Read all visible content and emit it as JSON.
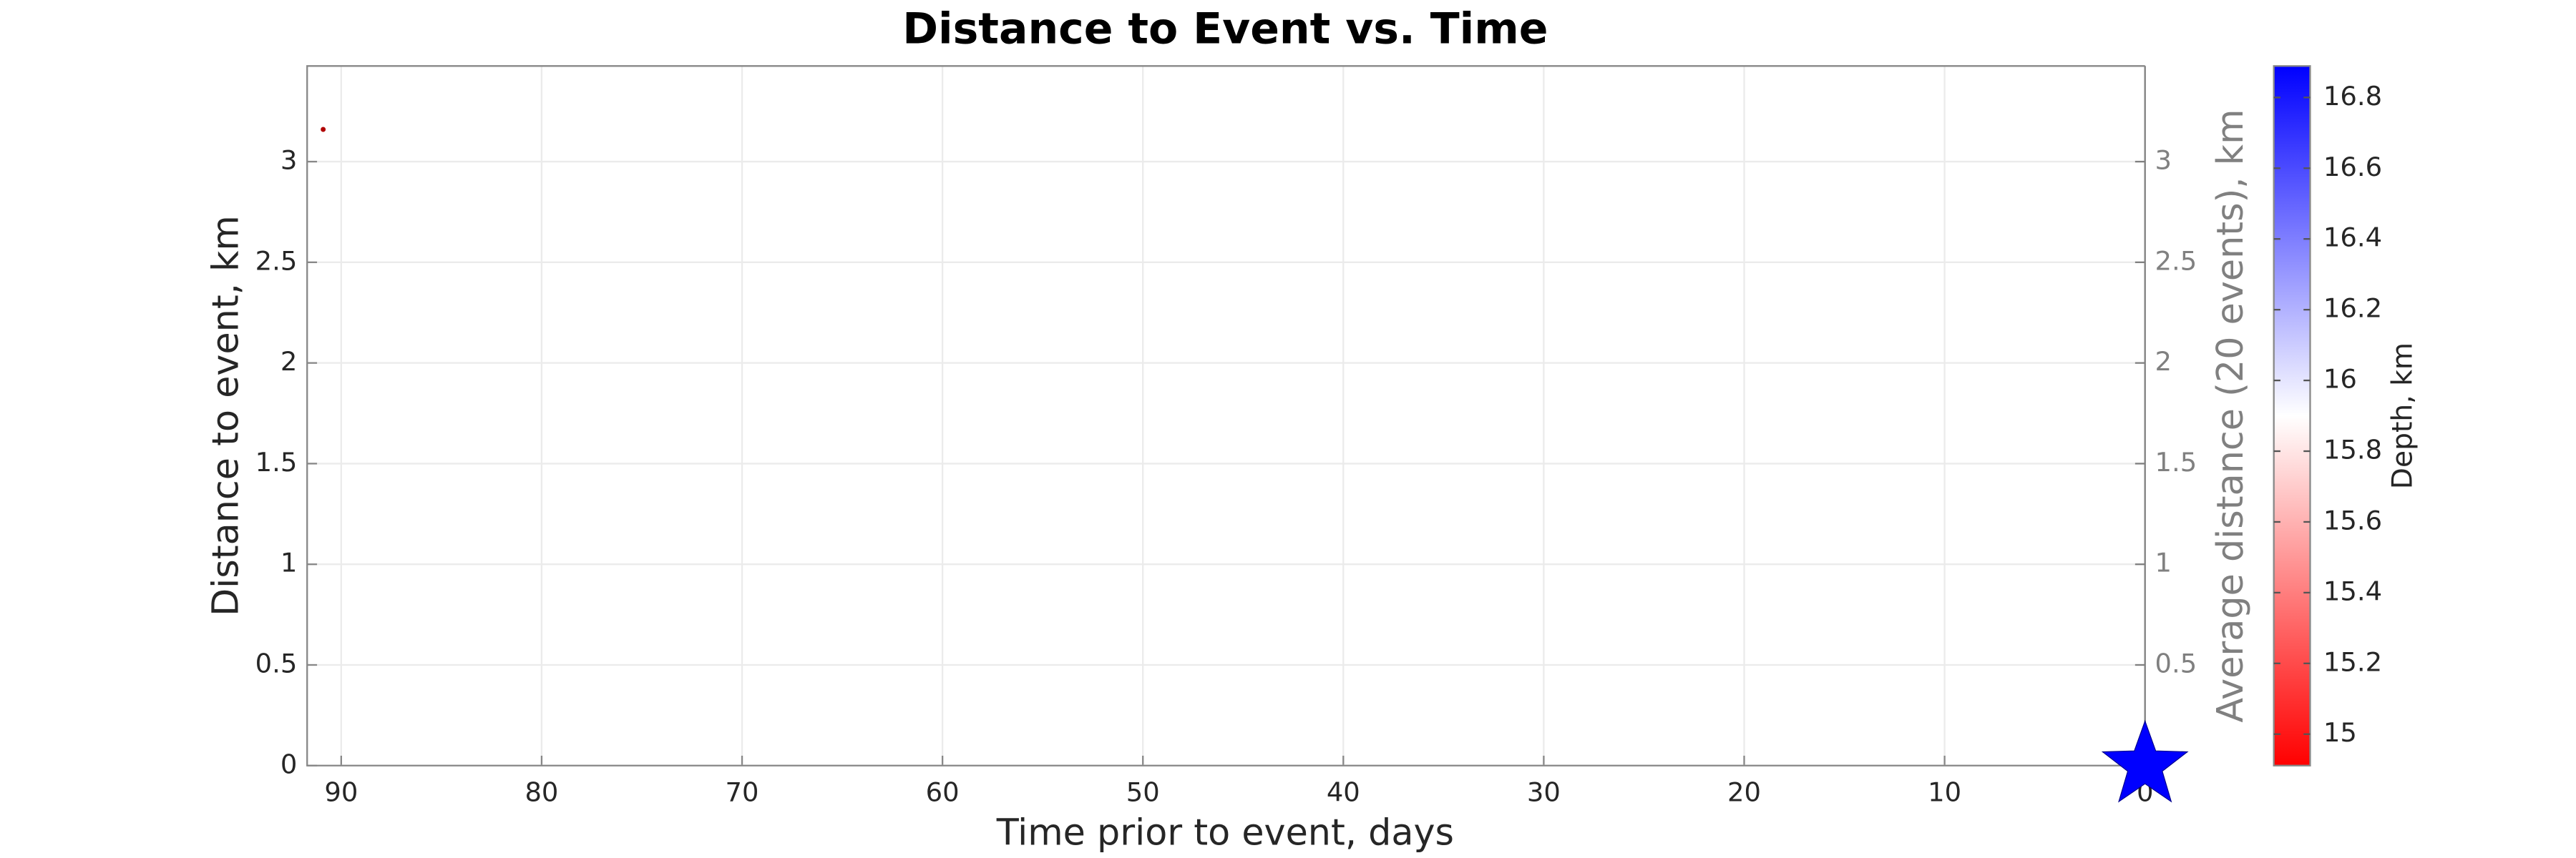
{
  "chart_data": {
    "type": "scatter",
    "title": "Distance to Event vs. Time",
    "x_label": "Time prior to event, days",
    "y_label": "Distance to event, km",
    "y2_label": "Average distance (20 events), km",
    "colorbar_label": "Depth, km",
    "xlim": [
      91.7,
      0
    ],
    "xticks": [
      90,
      80,
      70,
      60,
      50,
      40,
      30,
      20,
      10,
      0
    ],
    "ylim": [
      0,
      3.475
    ],
    "yticks": [
      0,
      0.5,
      1,
      1.5,
      2,
      2.5,
      3
    ],
    "y2lim": [
      0,
      3.475
    ],
    "y2ticks": [
      0.5,
      1,
      1.5,
      2,
      2.5,
      3
    ],
    "grid": true,
    "series": [
      {
        "x": [
          90.9
        ],
        "values": [
          3.16
        ],
        "color": "#b00000"
      }
    ],
    "star": {
      "x": 0,
      "y": 0,
      "color": "#0000ff"
    },
    "clim": [
      14.911,
      16.889
    ],
    "cticks": [
      15,
      15.2,
      15.4,
      15.6,
      15.8,
      16,
      16.2,
      16.4,
      16.6,
      16.8
    ]
  }
}
